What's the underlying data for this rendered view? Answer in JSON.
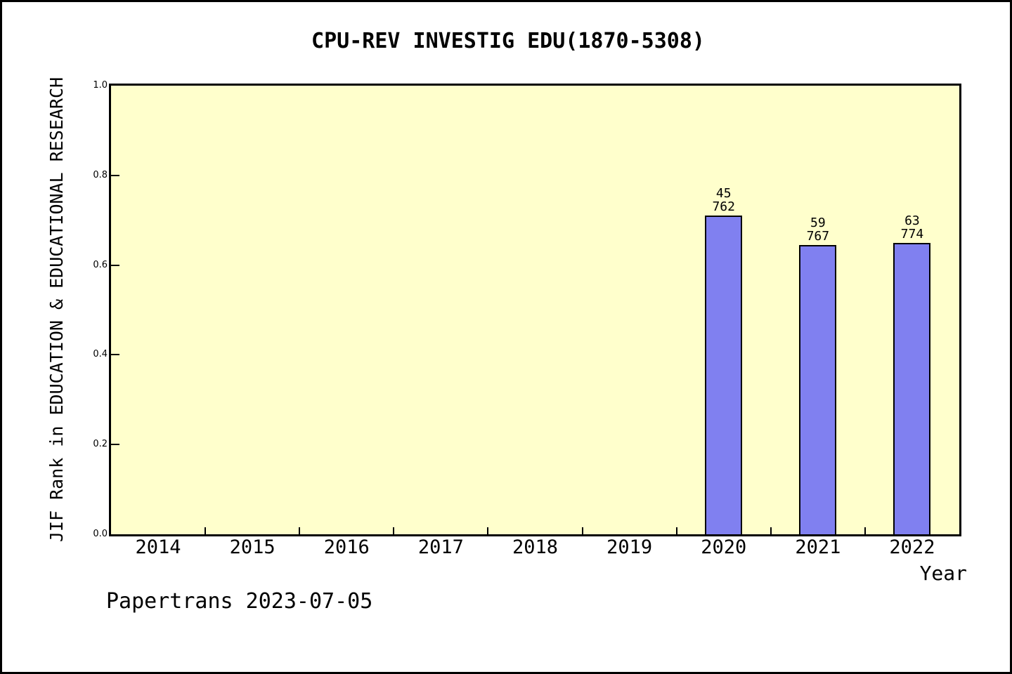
{
  "page": {
    "footer": "Papertrans 2023-07-05"
  },
  "chart_data": {
    "type": "bar",
    "title": "CPU-REV INVESTIG EDU(1870-5308)",
    "xlabel": "Year",
    "ylabel": "JIF Rank in EDUCATION & EDUCATIONAL RESEARCH",
    "categories": [
      "2014",
      "2015",
      "2016",
      "2017",
      "2018",
      "2019",
      "2020",
      "2021",
      "2022"
    ],
    "values": [
      null,
      null,
      null,
      null,
      null,
      null,
      0.71,
      0.645,
      0.65
    ],
    "bar_labels": [
      null,
      null,
      null,
      null,
      null,
      null,
      [
        "45",
        "762"
      ],
      [
        "59",
        "767"
      ],
      [
        "63",
        "774"
      ]
    ],
    "ytick_labels": [
      "0.0",
      "0.2",
      "0.4",
      "0.6",
      "0.8",
      "1.0"
    ],
    "ytick_values": [
      0.0,
      0.2,
      0.4,
      0.6,
      0.8,
      1.0
    ],
    "ylim": [
      0.0,
      1.0
    ],
    "grid": false,
    "legend": null,
    "colors": {
      "bar_fill": "#8080F0",
      "bar_border": "#000000",
      "plot_bg": "#FFFFCC",
      "axis": "#000000",
      "text": "#000000"
    }
  }
}
